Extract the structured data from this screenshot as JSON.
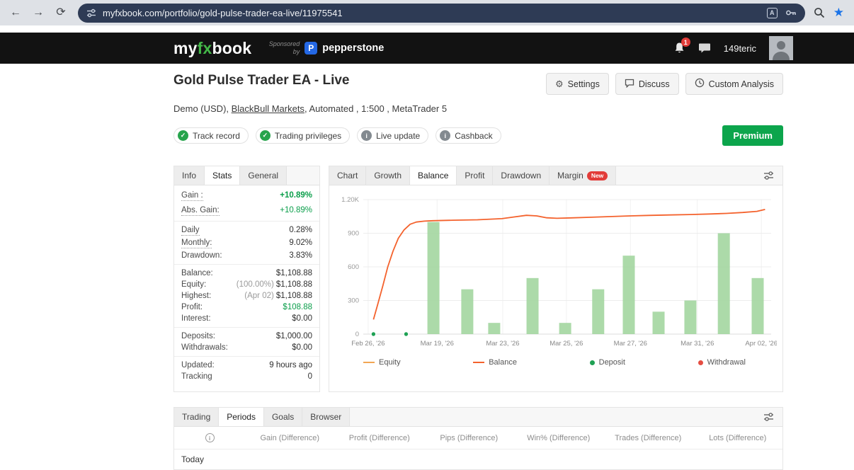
{
  "browser": {
    "url": "myfxbook.com/portfolio/gold-pulse-trader-ea-live/11975541"
  },
  "icons": {
    "back": "←",
    "forward": "→",
    "refresh": "⟳",
    "bookmark_star": "★",
    "settings_gear": "⚙",
    "translate": "A",
    "check": "✓",
    "info": "i"
  },
  "colors": {
    "brand_green": "#43b748",
    "accent_green": "#0ca54c",
    "gain_green": "#0a9e4a",
    "badge_red": "#e23c39",
    "bookmark_blue": "#1a73e8"
  },
  "header": {
    "logo_my": "my",
    "logo_fx": "fx",
    "logo_book": "book",
    "sponsored_by": "Sponsored by",
    "sponsor_initial": "P",
    "sponsor_name": "pepperstone",
    "notification_count": "1",
    "username": "149teric"
  },
  "page": {
    "title": "Gold Pulse Trader EA - Live",
    "subtitle_prefix": "Demo (USD), ",
    "subtitle_link": "BlackBull Markets",
    "subtitle_suffix": ", Automated , 1:500 , MetaTrader 5",
    "actions": [
      {
        "label": "Settings"
      },
      {
        "label": "Discuss"
      },
      {
        "label": "Custom Analysis"
      }
    ],
    "badges": [
      {
        "label": "Track record",
        "type": "check"
      },
      {
        "label": "Trading privileges",
        "type": "check"
      },
      {
        "label": "Live update",
        "type": "info"
      },
      {
        "label": "Cashback",
        "type": "info"
      }
    ],
    "premium_label": "Premium"
  },
  "stats_panel": {
    "tabs": [
      {
        "label": "Info"
      },
      {
        "label": "Stats",
        "active": true
      },
      {
        "label": "General"
      }
    ],
    "rows": [
      {
        "label": "Gain :",
        "value": "+10.89%"
      },
      {
        "label": "Abs. Gain:",
        "value": "+10.89%"
      },
      {
        "label": "Daily",
        "value": "0.28%"
      },
      {
        "label": "Monthly:",
        "value": "9.02%"
      },
      {
        "label": "Drawdown:",
        "value": "3.83%"
      },
      {
        "label": "Balance:",
        "value": "$1,108.88"
      },
      {
        "label": "Equity:",
        "prefix": "(100.00%)",
        "value": "$1,108.88"
      },
      {
        "label": "Highest:",
        "prefix": "(Apr 02)",
        "value": "$1,108.88"
      },
      {
        "label": "Profit:",
        "value": "$108.88"
      },
      {
        "label": "Interest:",
        "value": "$0.00"
      },
      {
        "label": "Deposits:",
        "value": "$1,000.00"
      },
      {
        "label": "Withdrawals:",
        "value": "$0.00"
      },
      {
        "label": "Updated:",
        "value": "9 hours ago"
      },
      {
        "label": "Tracking",
        "value": "0"
      }
    ]
  },
  "chart_panel": {
    "tabs": [
      {
        "label": "Chart"
      },
      {
        "label": "Growth"
      },
      {
        "label": "Balance",
        "active": true
      },
      {
        "label": "Profit"
      },
      {
        "label": "Drawdown"
      },
      {
        "label": "Margin",
        "badge": "New"
      }
    ]
  },
  "chart_data": {
    "type": "line+bar",
    "title": "Balance chart",
    "ylim": [
      0,
      1200
    ],
    "y_ticks": [
      {
        "value": 1200,
        "label": "1.20K"
      },
      {
        "value": 900,
        "label": "900"
      },
      {
        "value": 600,
        "label": "600"
      },
      {
        "value": 300,
        "label": "300"
      },
      {
        "value": 0,
        "label": "0"
      }
    ],
    "x_labels": [
      {
        "pos": 0.012,
        "label": "Feb 26, '26"
      },
      {
        "pos": 0.181,
        "label": "Mar 19, '26"
      },
      {
        "pos": 0.342,
        "label": "Mar 23, '26"
      },
      {
        "pos": 0.498,
        "label": "Mar 25, '26"
      },
      {
        "pos": 0.655,
        "label": "Mar 27, '26"
      },
      {
        "pos": 0.819,
        "label": "Mar 31, '26"
      },
      {
        "pos": 0.976,
        "label": "Apr 02, '26"
      }
    ],
    "bars": [
      {
        "pos": 0.172,
        "value": 1000
      },
      {
        "pos": 0.255,
        "value": 400
      },
      {
        "pos": 0.321,
        "value": 100
      },
      {
        "pos": 0.415,
        "value": 500
      },
      {
        "pos": 0.495,
        "value": 100
      },
      {
        "pos": 0.576,
        "value": 400
      },
      {
        "pos": 0.651,
        "value": 700
      },
      {
        "pos": 0.724,
        "value": 200
      },
      {
        "pos": 0.802,
        "value": 300
      },
      {
        "pos": 0.884,
        "value": 900
      },
      {
        "pos": 0.967,
        "value": 500
      }
    ],
    "balance_line": [
      [
        0.025,
        130
      ],
      [
        0.035,
        260
      ],
      [
        0.048,
        430
      ],
      [
        0.06,
        600
      ],
      [
        0.073,
        740
      ],
      [
        0.086,
        855
      ],
      [
        0.1,
        930
      ],
      [
        0.115,
        980
      ],
      [
        0.13,
        1000
      ],
      [
        0.15,
        1008
      ],
      [
        0.17,
        1012
      ],
      [
        0.22,
        1016
      ],
      [
        0.28,
        1020
      ],
      [
        0.34,
        1030
      ],
      [
        0.37,
        1045
      ],
      [
        0.4,
        1060
      ],
      [
        0.425,
        1055
      ],
      [
        0.45,
        1038
      ],
      [
        0.475,
        1033
      ],
      [
        0.51,
        1037
      ],
      [
        0.56,
        1043
      ],
      [
        0.61,
        1049
      ],
      [
        0.655,
        1055
      ],
      [
        0.7,
        1059
      ],
      [
        0.75,
        1063
      ],
      [
        0.8,
        1067
      ],
      [
        0.85,
        1072
      ],
      [
        0.89,
        1077
      ],
      [
        0.93,
        1085
      ],
      [
        0.965,
        1095
      ],
      [
        0.985,
        1112
      ]
    ],
    "deposits": [
      {
        "pos": 0.025,
        "value": 0
      },
      {
        "pos": 0.105,
        "value": 0
      }
    ],
    "series_colors": {
      "equity": "#f2a654",
      "balance": "#f4622d",
      "deposit": "#1fa154",
      "withdrawal": "#e54d42",
      "bars": "#a3d6a0"
    },
    "legend": [
      {
        "label": "Equity",
        "type": "line",
        "color": "#f2a654"
      },
      {
        "label": "Balance",
        "type": "line",
        "color": "#f4622d"
      },
      {
        "label": "Deposit",
        "type": "dot",
        "color": "#1fa154"
      },
      {
        "label": "Withdrawal",
        "type": "dot",
        "color": "#e54d42"
      }
    ]
  },
  "periods_panel": {
    "tabs": [
      {
        "label": "Trading"
      },
      {
        "label": "Periods",
        "active": true
      },
      {
        "label": "Goals"
      },
      {
        "label": "Browser"
      }
    ],
    "columns": [
      "Gain (Difference)",
      "Profit (Difference)",
      "Pips (Difference)",
      "Win% (Difference)",
      "Trades (Difference)",
      "Lots (Difference)"
    ],
    "first_row": "Today"
  }
}
